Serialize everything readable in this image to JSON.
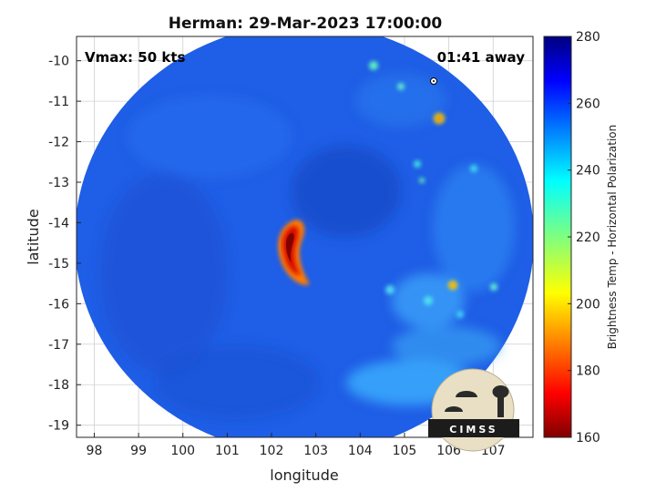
{
  "chart_data": {
    "type": "heatmap",
    "title": "Herman: 29-Mar-2023 17:00:00",
    "xlabel": "longitude",
    "ylabel": "latitude",
    "xlim": [
      97.6,
      107.9
    ],
    "ylim": [
      -19.3,
      -9.4
    ],
    "xticks": [
      98,
      99,
      100,
      101,
      102,
      103,
      104,
      105,
      106,
      107
    ],
    "yticks": [
      -10,
      -11,
      -12,
      -13,
      -14,
      -15,
      -16,
      -17,
      -18,
      -19
    ],
    "grid": true,
    "annotations": {
      "vmax": "Vmax: 50 kts",
      "time_away": "01:41 away"
    },
    "colorbar": {
      "label": "Brightness Temp - Horizontal Polarization",
      "min": 160,
      "max": 280,
      "ticks": [
        280,
        260,
        240,
        220,
        200,
        180,
        160
      ],
      "colormap": "jet"
    },
    "storm_center": {
      "lon": 102.4,
      "lat": -14.7
    },
    "cold_core_min_k": 165
  },
  "logo": {
    "text": "CIMSS"
  },
  "colors": {
    "background_field": "#1f5ee6",
    "grid": "#d0d0d0"
  }
}
